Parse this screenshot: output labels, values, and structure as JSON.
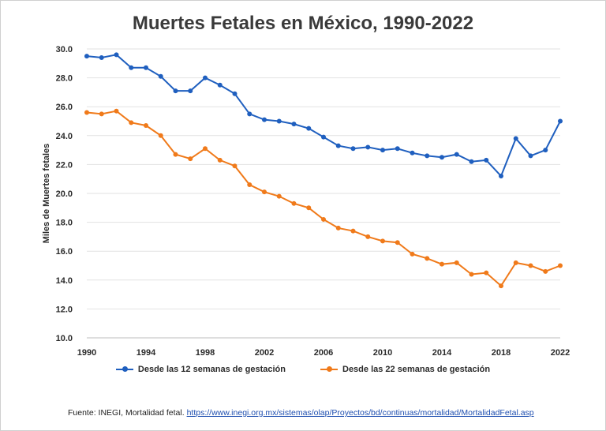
{
  "chart_data": {
    "type": "line",
    "title": "Muertes Fetales en México, 1990-2022",
    "xlabel": "",
    "ylabel": "Miles de Muertes fetales",
    "xlim": [
      1990,
      2022
    ],
    "ylim": [
      10.0,
      30.0
    ],
    "yticks": [
      "10.0",
      "12.0",
      "14.0",
      "16.0",
      "18.0",
      "20.0",
      "22.0",
      "24.0",
      "26.0",
      "28.0",
      "30.0"
    ],
    "xticks": [
      "1990",
      "1994",
      "1998",
      "2002",
      "2006",
      "2010",
      "2014",
      "2018",
      "2022"
    ],
    "grid": true,
    "legend_position": "bottom",
    "x": [
      1990,
      1991,
      1992,
      1993,
      1994,
      1995,
      1996,
      1997,
      1998,
      1999,
      2000,
      2001,
      2002,
      2003,
      2004,
      2005,
      2006,
      2007,
      2008,
      2009,
      2010,
      2011,
      2012,
      2013,
      2014,
      2015,
      2016,
      2017,
      2018,
      2019,
      2020,
      2021,
      2022
    ],
    "series": [
      {
        "name": "Desde las 12 semanas de gestación",
        "color": "#1f5fbf",
        "values": [
          29.5,
          29.4,
          29.6,
          28.7,
          28.7,
          28.1,
          27.1,
          27.1,
          28.0,
          27.5,
          26.9,
          25.5,
          25.1,
          25.0,
          24.8,
          24.5,
          23.9,
          23.3,
          23.1,
          23.2,
          23.0,
          23.1,
          22.8,
          22.6,
          22.5,
          22.7,
          22.2,
          22.3,
          21.2,
          23.8,
          22.6,
          23.0,
          25.0
        ]
      },
      {
        "name": "Desde las 22 semanas de gestación",
        "color": "#f07a1a",
        "values": [
          25.6,
          25.5,
          25.7,
          24.9,
          24.7,
          24.0,
          22.7,
          22.4,
          23.1,
          22.3,
          21.9,
          20.6,
          20.1,
          19.8,
          19.3,
          19.0,
          18.2,
          17.6,
          17.4,
          17.0,
          16.7,
          16.6,
          15.8,
          15.5,
          15.1,
          15.2,
          14.4,
          14.5,
          13.6,
          15.2,
          15.0,
          14.6,
          15.0
        ]
      }
    ]
  },
  "source": {
    "prefix": "Fuente: INEGI, Mortalidad fetal. ",
    "url": "https://www.inegi.org.mx/sistemas/olap/Proyectos/bd/continuas/mortalidad/MortalidadFetal.asp"
  }
}
